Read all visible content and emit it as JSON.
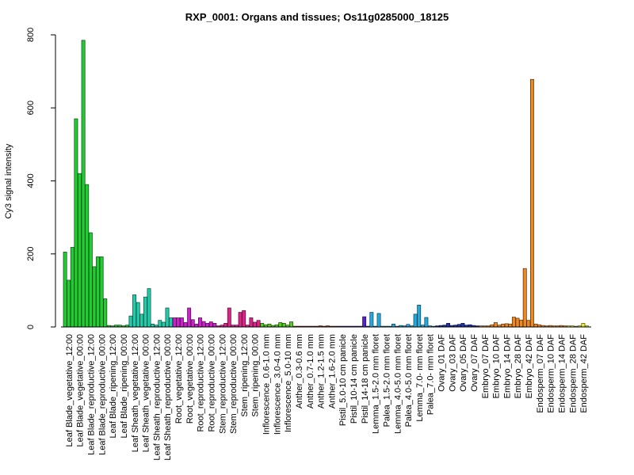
{
  "chart_data": {
    "type": "bar",
    "title": "RXP_0001: Organs and tissues; Os11g0285000_18125",
    "xlabel": "",
    "ylabel": "Cy3 signal intensity",
    "ylim": [
      0,
      800
    ],
    "yticks": [
      "0",
      "200",
      "400",
      "600",
      "800"
    ],
    "grid": false,
    "legend": "none",
    "categories": [
      {
        "label": "Leaf Blade_vegetative_12:00",
        "color": "#22cc33",
        "values": [
          205,
          128,
          218
        ]
      },
      {
        "label": "Leaf Blade_vegetative_00:00",
        "color": "#22cc33",
        "values": [
          570,
          420,
          785
        ]
      },
      {
        "label": "Leaf Blade_reproductive_12:00",
        "color": "#22cc33",
        "values": [
          390,
          258,
          165
        ]
      },
      {
        "label": "Leaf Blade_reproductive_00:00",
        "color": "#22cc33",
        "values": [
          192,
          192,
          77
        ]
      },
      {
        "label": "Leaf Blade_ripening_12:00",
        "color": "#22cc33",
        "values": [
          4,
          3,
          5
        ]
      },
      {
        "label": "Leaf Blade_ripening_00:00",
        "color": "#22cc33",
        "values": [
          5,
          3,
          5
        ]
      },
      {
        "label": "Leaf Sheath_vegetative_12:00",
        "color": "#22ccaa",
        "values": [
          30,
          88,
          67
        ]
      },
      {
        "label": "Leaf Sheath_vegetative_00:00",
        "color": "#22ccaa",
        "values": [
          35,
          82,
          105
        ]
      },
      {
        "label": "Leaf Sheath_reproductive_12:00",
        "color": "#22ccaa",
        "values": [
          8,
          5,
          18
        ]
      },
      {
        "label": "Leaf Sheath_reproductive_00:00",
        "color": "#22ccaa",
        "values": [
          13,
          52,
          25
        ]
      },
      {
        "label": "Root_vegetative_12:00",
        "color": "#cc22cc",
        "values": [
          25,
          25,
          25
        ]
      },
      {
        "label": "Root_vegetative_00:00",
        "color": "#cc22cc",
        "values": [
          12,
          52,
          20
        ]
      },
      {
        "label": "Root_reproductive_12:00",
        "color": "#cc22cc",
        "values": [
          8,
          25,
          15
        ]
      },
      {
        "label": "Root_reproductive_00:00",
        "color": "#cc22cc",
        "values": [
          10,
          14,
          10
        ]
      },
      {
        "label": "Stem_reproductive_12:00",
        "color": "#dd2288",
        "values": [
          3,
          5,
          10
        ]
      },
      {
        "label": "Stem_reproductive_00:00",
        "color": "#dd2288",
        "values": [
          52,
          5,
          5
        ]
      },
      {
        "label": "Stem_ripening_12:00",
        "color": "#dd2288",
        "values": [
          40,
          45,
          5
        ]
      },
      {
        "label": "Stem_ripening_00:00",
        "color": "#dd2288",
        "values": [
          25,
          13,
          18
        ]
      },
      {
        "label": "Inflorescence_0.6-1.0 mm",
        "color": "#55cc22",
        "values": [
          10,
          6,
          8
        ]
      },
      {
        "label": "Inflorescence_3.0-4.0 mm",
        "color": "#55cc22",
        "values": [
          4,
          6,
          12
        ]
      },
      {
        "label": "Inflorescence_5.0-10 mm",
        "color": "#55cc22",
        "values": [
          10,
          5,
          14
        ]
      },
      {
        "label": "Anther_0.3-0.6 mm",
        "color": "#aa3322",
        "values": [
          2,
          2,
          2
        ]
      },
      {
        "label": "Anther_0.7-1.0 mm",
        "color": "#aa3322",
        "values": [
          2,
          2,
          2
        ]
      },
      {
        "label": "Anther_1.2-1.5 mm",
        "color": "#aa3322",
        "values": [
          2,
          3,
          2
        ]
      },
      {
        "label": "Anther_1.6-2.0 mm",
        "color": "#aa3322",
        "values": [
          3,
          2,
          2
        ]
      },
      {
        "label": "Pistil_5.0-10 cm panicle",
        "color": "#5522cc",
        "values": [
          2,
          2,
          2
        ]
      },
      {
        "label": "Pistil_10-14 cm panicle",
        "color": "#5522cc",
        "values": [
          2,
          2,
          2
        ]
      },
      {
        "label": "Pistil_14-18 cm panicle",
        "color": "#5522cc",
        "values": [
          2,
          28,
          2
        ]
      },
      {
        "label": "Lemma_1.5-2.0 mm floret",
        "color": "#22aadd",
        "values": [
          40,
          2,
          37
        ]
      },
      {
        "label": "Palea_1.5-2.0 mm floret",
        "color": "#22aadd",
        "values": [
          2,
          2,
          2
        ]
      },
      {
        "label": "Lemma_4.0-5.0 mm floret",
        "color": "#22aadd",
        "values": [
          8,
          2,
          4
        ]
      },
      {
        "label": "Palea_4.0-5.0 mm floret",
        "color": "#22aadd",
        "values": [
          3,
          7,
          3
        ]
      },
      {
        "label": "Lemma_7.0- mm floret",
        "color": "#22aadd",
        "values": [
          35,
          60,
          5
        ]
      },
      {
        "label": "Palea_7.0- mm floret",
        "color": "#22aadd",
        "values": [
          26,
          3,
          2
        ]
      },
      {
        "label": "Ovary_01 DAF",
        "color": "#2233aa",
        "values": [
          3,
          4,
          5
        ]
      },
      {
        "label": "Ovary_03 DAF",
        "color": "#2233aa",
        "values": [
          10,
          4,
          5
        ]
      },
      {
        "label": "Ovary_05 DAF",
        "color": "#2233aa",
        "values": [
          7,
          10,
          5
        ]
      },
      {
        "label": "Ovary_07 DAF",
        "color": "#2233aa",
        "values": [
          6,
          4,
          3
        ]
      },
      {
        "label": "Embryo_07 DAF",
        "color": "#ee8822",
        "values": [
          3,
          3,
          3
        ]
      },
      {
        "label": "Embryo_10 DAF",
        "color": "#ee8822",
        "values": [
          6,
          12,
          5
        ]
      },
      {
        "label": "Embryo_14 DAF",
        "color": "#ee8822",
        "values": [
          8,
          9,
          8
        ]
      },
      {
        "label": "Embryo_28 DAF",
        "color": "#ee8822",
        "values": [
          27,
          24,
          19
        ]
      },
      {
        "label": "Embryo_42 DAF",
        "color": "#ee8822",
        "values": [
          160,
          18,
          678
        ]
      },
      {
        "label": "Endosperm_07 DAF",
        "color": "#ee8822",
        "values": [
          8,
          6,
          4
        ]
      },
      {
        "label": "Endosperm_10 DAF",
        "color": "#ee8822",
        "values": [
          3,
          4,
          3
        ]
      },
      {
        "label": "Endosperm_14 DAF",
        "color": "#ee8822",
        "values": [
          3,
          4,
          3
        ]
      },
      {
        "label": "Endosperm_28 DAF",
        "color": "#eeee22",
        "values": [
          3,
          3,
          2
        ]
      },
      {
        "label": "Endosperm_42 DAF",
        "color": "#eeee22",
        "values": [
          3,
          10,
          3
        ]
      }
    ]
  }
}
